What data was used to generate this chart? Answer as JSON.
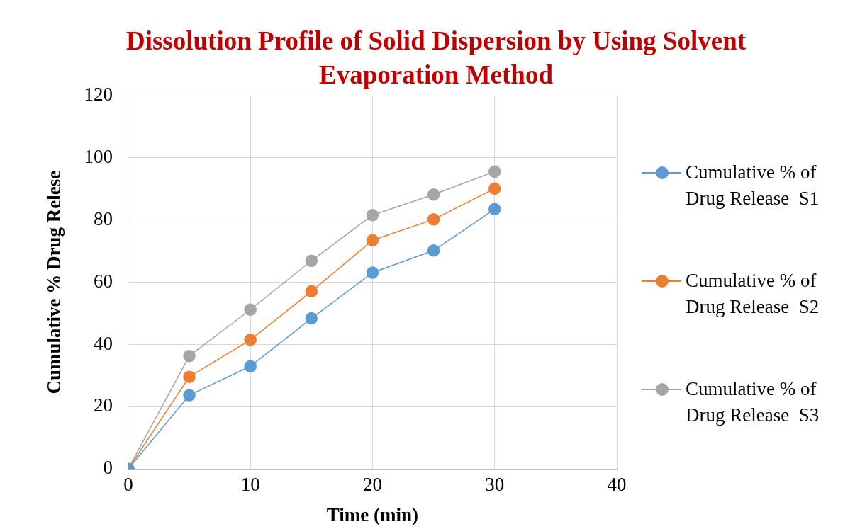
{
  "chart_data": {
    "type": "line",
    "title": "Dissolution Profile of Solid Dispersion by Using Solvent Evaporation Method",
    "xlabel": "Time (min)",
    "ylabel": "Cumulative % Drug Relese",
    "x": [
      0,
      5,
      10,
      15,
      20,
      25,
      30
    ],
    "series": [
      {
        "name": "Cumulative % of Drug Release  S1",
        "color": "#5b9bd5",
        "values": [
          0,
          23.7,
          33.0,
          48.4,
          63.1,
          70.2,
          83.5
        ]
      },
      {
        "name": "Cumulative % of Drug Release  S2",
        "color": "#ed7d31",
        "values": [
          0,
          29.6,
          41.5,
          57.1,
          73.5,
          80.2,
          90.1
        ]
      },
      {
        "name": "Cumulative % of Drug Release  S3",
        "color": "#a5a5a5",
        "values": [
          0,
          36.3,
          51.2,
          66.9,
          81.6,
          88.2,
          95.6
        ]
      }
    ],
    "xlim": [
      0,
      40
    ],
    "xticks": [
      0,
      10,
      20,
      30,
      40
    ],
    "ylim": [
      0,
      120
    ],
    "yticks": [
      0,
      20,
      40,
      60,
      80,
      100,
      120
    ],
    "grid": true,
    "legend": "right",
    "marker": "circle",
    "line_style": "solid"
  }
}
